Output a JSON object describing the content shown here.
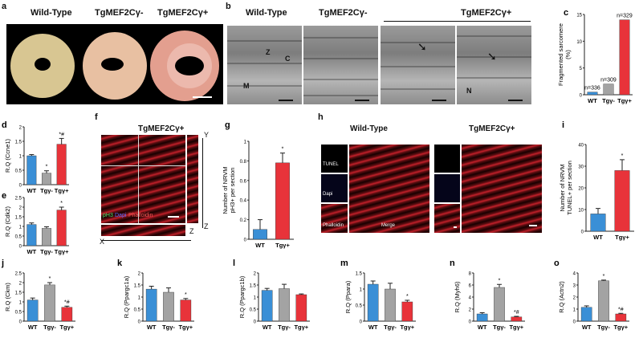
{
  "panel_a": {
    "letter": "a",
    "titles": [
      "Wild-Type",
      "TgMEF2Cγ-",
      "TgMEF2Cγ+"
    ]
  },
  "panel_b": {
    "letter": "b",
    "titles": [
      "Wild-Type",
      "TgMEF2Cγ-",
      "TgMEF2Cγ+"
    ],
    "labels": [
      "Z",
      "C",
      "M",
      "N"
    ]
  },
  "panel_f": {
    "letter": "f",
    "title": "TgMEF2Cγ+",
    "stain_pH3": "pH3",
    "stain_dapi": "Dapi",
    "stain_phalloidin": "Phalloidin",
    "axis_x": "X",
    "axis_y": "Y",
    "axis_z1": "Z",
    "axis_z2": "Z"
  },
  "panel_h": {
    "letter": "h",
    "title_wt": "Wild-Type",
    "title_tg": "TgMEF2Cγ+",
    "stain_tunel": "TUNEL",
    "stain_dapi": "Dapi",
    "stain_phalloidin": "Phalloidin",
    "merge": "Merge"
  },
  "colors": {
    "wt": "#3a8fd6",
    "tg_minus": "#a3a3a3",
    "tg_plus": "#e8333a"
  },
  "chart_data": [
    {
      "id": "c",
      "type": "bar",
      "ylabel": "Fragmented sarcomere (%)",
      "categories": [
        "WT",
        "Tgγ-",
        "Tgγ+"
      ],
      "values": [
        0.5,
        2,
        14
      ],
      "errors": [
        0,
        0,
        0
      ],
      "ylim": [
        0,
        15
      ],
      "yticks": [
        0,
        5,
        10,
        15
      ],
      "annotations": [
        "n=336",
        "n=309",
        "n=329"
      ]
    },
    {
      "id": "d",
      "type": "bar",
      "ylabel": "R.Q (Ccne1)",
      "categories": [
        "WT",
        "Tgγ-",
        "Tgγ+"
      ],
      "values": [
        1.0,
        0.4,
        1.4
      ],
      "errors": [
        0.04,
        0.08,
        0.2
      ],
      "ylim": [
        0,
        2.0
      ],
      "yticks": [
        0,
        0.5,
        1.0,
        1.5,
        2.0
      ],
      "annotations": [
        "",
        "*",
        "*#"
      ]
    },
    {
      "id": "e",
      "type": "bar",
      "ylabel": "R.Q (Cdk2)",
      "categories": [
        "WT",
        "Tgγ-",
        "Tgγ+"
      ],
      "values": [
        1.1,
        0.9,
        1.85
      ],
      "errors": [
        0.08,
        0.08,
        0.15
      ],
      "ylim": [
        0,
        2.5
      ],
      "yticks": [
        0,
        0.5,
        1.0,
        1.5,
        2.0,
        2.5
      ],
      "annotations": [
        "",
        "",
        "*"
      ]
    },
    {
      "id": "g",
      "type": "bar",
      "ylabel": "Number of NRVM pH3+ per section",
      "categories": [
        "WT",
        "Tgγ+"
      ],
      "values": [
        0.1,
        0.78
      ],
      "errors": [
        0.1,
        0.1
      ],
      "ylim": [
        0,
        1.0
      ],
      "yticks": [
        0.0,
        0.2,
        0.4,
        0.6,
        0.8,
        1.0
      ],
      "annotations": [
        "",
        "*"
      ]
    },
    {
      "id": "i",
      "type": "bar",
      "ylabel": "Number of NRVM TUNEL+ per section",
      "categories": [
        "WT",
        "Tgγ+"
      ],
      "values": [
        8,
        28
      ],
      "errors": [
        2.5,
        5
      ],
      "ylim": [
        0,
        40
      ],
      "yticks": [
        0,
        10,
        20,
        30,
        40
      ],
      "annotations": [
        "",
        "*"
      ]
    },
    {
      "id": "j",
      "type": "bar",
      "ylabel": "R.Q (Ckm)",
      "categories": [
        "WT",
        "Tgγ-",
        "Tgγ+"
      ],
      "values": [
        1.1,
        1.88,
        0.72
      ],
      "errors": [
        0.1,
        0.12,
        0.06
      ],
      "ylim": [
        0,
        2.5
      ],
      "yticks": [
        0.0,
        0.5,
        1.0,
        1.5,
        2.0,
        2.5
      ],
      "annotations": [
        "",
        "*",
        "*#"
      ]
    },
    {
      "id": "k",
      "type": "bar",
      "ylabel": "R.Q (Ppargc1a)",
      "categories": [
        "WT",
        "Tgγ-",
        "Tgγ+"
      ],
      "values": [
        1.33,
        1.2,
        0.88
      ],
      "errors": [
        0.12,
        0.18,
        0.06
      ],
      "ylim": [
        0,
        2.0
      ],
      "yticks": [
        0.0,
        0.5,
        1.0,
        1.5,
        2.0
      ],
      "annotations": [
        "",
        "",
        "*"
      ]
    },
    {
      "id": "l",
      "type": "bar",
      "ylabel": "R.Q (Ppargc1b)",
      "categories": [
        "WT",
        "Tgγ-",
        "Tgγ+"
      ],
      "values": [
        1.28,
        1.35,
        1.1
      ],
      "errors": [
        0.08,
        0.18,
        0.03
      ],
      "ylim": [
        0,
        2.0
      ],
      "yticks": [
        0.0,
        0.5,
        1.0,
        1.5,
        2.0
      ],
      "annotations": [
        "",
        "",
        ""
      ]
    },
    {
      "id": "m",
      "type": "bar",
      "ylabel": "R.Q (Ppara)",
      "categories": [
        "WT",
        "Tgγ-",
        "Tgγ+"
      ],
      "values": [
        1.15,
        1.0,
        0.6
      ],
      "errors": [
        0.1,
        0.18,
        0.05
      ],
      "ylim": [
        0,
        1.5
      ],
      "yticks": [
        0.0,
        0.5,
        1.0,
        1.5
      ],
      "annotations": [
        "",
        "",
        "*"
      ]
    },
    {
      "id": "n",
      "type": "bar",
      "ylabel": "R.Q (Myh6)",
      "categories": [
        "WT",
        "Tgγ-",
        "Tgγ+"
      ],
      "values": [
        1.2,
        5.6,
        0.7
      ],
      "errors": [
        0.2,
        0.5,
        0.1
      ],
      "ylim": [
        0,
        8
      ],
      "yticks": [
        0,
        2,
        4,
        6,
        8
      ],
      "annotations": [
        "",
        "*",
        "*#"
      ]
    },
    {
      "id": "o",
      "type": "bar",
      "ylabel": "R.Q (Actn2)",
      "categories": [
        "WT",
        "Tgγ-",
        "Tgγ+"
      ],
      "values": [
        1.15,
        3.35,
        0.6
      ],
      "errors": [
        0.12,
        0.06,
        0.05
      ],
      "ylim": [
        0,
        4
      ],
      "yticks": [
        0,
        1,
        2,
        3,
        4
      ],
      "annotations": [
        "",
        "*",
        "*#"
      ]
    }
  ]
}
